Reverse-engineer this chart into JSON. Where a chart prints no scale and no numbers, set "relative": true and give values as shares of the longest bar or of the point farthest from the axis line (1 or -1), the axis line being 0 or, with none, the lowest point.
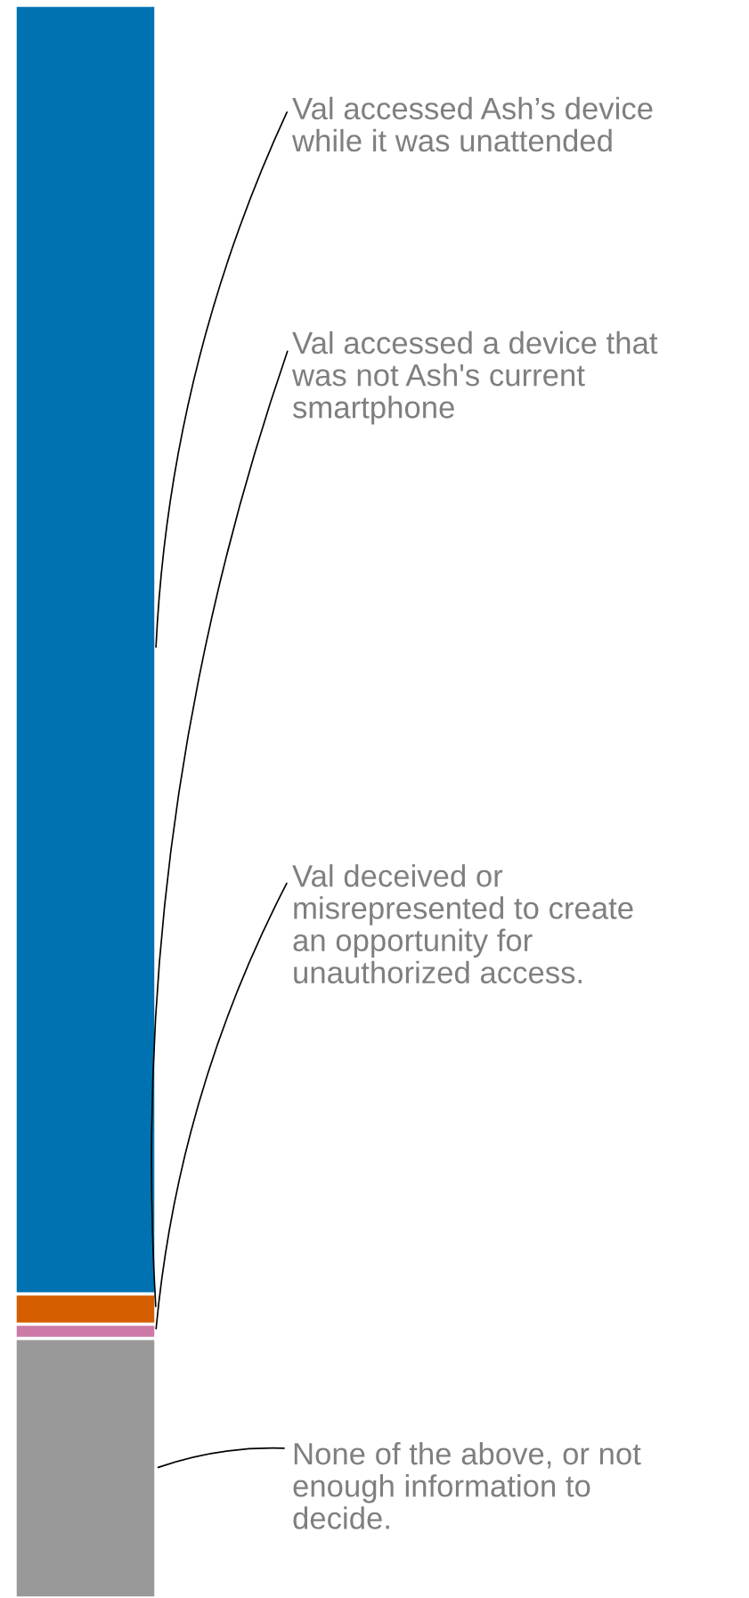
{
  "chart_data": {
    "type": "bar",
    "stacked": true,
    "relative": true,
    "categories": [
      null
    ],
    "series": [
      {
        "color": "#999999",
        "values": [
          0.163
        ]
      },
      {
        "color": "#cc79a7",
        "values": [
          0.009
        ]
      },
      {
        "color": "#d55e00",
        "values": [
          0.019
        ]
      },
      {
        "color": "#0072b2",
        "values": [
          0.809
        ]
      }
    ],
    "annotations": [
      "Val accessed Ash’s device\nwhile it was unattended",
      "Val accessed a device that\nwas not Ash's current\nsmartphone",
      "Val deceived or\nmisrepresented to create\nan opportunity for\nunauthorized access.",
      "None of the above, or not\nenough information to\ndecide."
    ]
  }
}
